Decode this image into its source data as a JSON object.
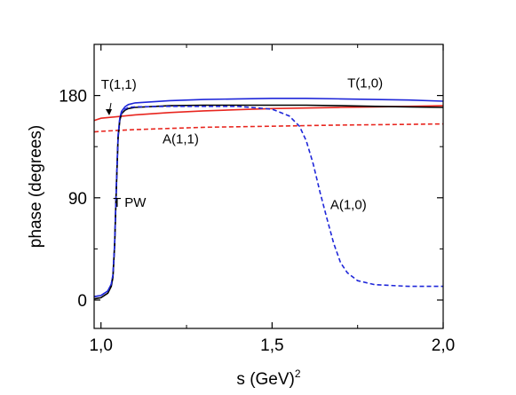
{
  "chart_data": {
    "type": "line",
    "xlabel": "s (GeV)",
    "xlabel_sup": "2",
    "ylabel": "phase (degrees)",
    "xlim": [
      0.98,
      2.0
    ],
    "ylim": [
      -25,
      225
    ],
    "xticks": [
      1.0,
      1.5,
      2.0
    ],
    "xtick_labels": [
      "1,0",
      "1,5",
      "2,0"
    ],
    "yticks": [
      0,
      90,
      180
    ],
    "ytick_labels": [
      "0",
      "90",
      "180"
    ],
    "grid": false,
    "annotations": [
      {
        "text": "T(1,1)",
        "x": 1.0,
        "y": 186
      },
      {
        "text": "T(1,0)",
        "x": 1.72,
        "y": 187
      },
      {
        "text": "A(1,1)",
        "x": 1.18,
        "y": 138
      },
      {
        "text": "T PW",
        "x": 1.035,
        "y": 82
      },
      {
        "text": "A(1,0)",
        "x": 1.67,
        "y": 80
      }
    ],
    "series": [
      {
        "name": "T(1,1)",
        "color": "#e8261f",
        "dash": "solid",
        "x": [
          0.98,
          1.0,
          1.1,
          1.2,
          1.3,
          1.4,
          1.5,
          1.6,
          1.7,
          1.8,
          1.9,
          2.0
        ],
        "y": [
          158,
          160,
          163,
          165,
          166.5,
          167.5,
          168.5,
          169,
          169.5,
          170,
          170.5,
          171
        ]
      },
      {
        "name": "A(1,1)",
        "color": "#e8261f",
        "dash": "dashed",
        "x": [
          0.98,
          1.0,
          1.1,
          1.2,
          1.3,
          1.4,
          1.5,
          1.6,
          1.7,
          1.8,
          1.9,
          2.0
        ],
        "y": [
          148,
          148.5,
          150,
          151,
          152,
          152.5,
          153,
          153.5,
          154,
          154.3,
          154.6,
          155
        ]
      },
      {
        "name": "T(1,0)",
        "color": "#1f27d9",
        "dash": "solid",
        "x": [
          0.98,
          1.0,
          1.02,
          1.03,
          1.035,
          1.04,
          1.045,
          1.05,
          1.055,
          1.06,
          1.07,
          1.08,
          1.1,
          1.2,
          1.3,
          1.4,
          1.5,
          1.6,
          1.7,
          1.8,
          1.9,
          2.0
        ],
        "y": [
          3,
          4,
          8,
          14,
          22,
          50,
          100,
          145,
          160,
          166,
          170,
          172,
          173.5,
          175.5,
          176.5,
          177,
          177.5,
          177.5,
          177,
          176.5,
          176,
          175
        ]
      },
      {
        "name": "T PW",
        "color": "#000000",
        "dash": "solid",
        "x": [
          0.98,
          1.0,
          1.02,
          1.03,
          1.035,
          1.04,
          1.045,
          1.05,
          1.055,
          1.06,
          1.07,
          1.08,
          1.1,
          1.2,
          1.3,
          1.4,
          1.5,
          1.6,
          1.7,
          1.8,
          1.9,
          2.0
        ],
        "y": [
          1,
          2,
          6,
          12,
          20,
          48,
          98,
          143,
          158,
          164,
          167,
          168.5,
          169.5,
          171,
          171.5,
          171.5,
          171.5,
          171.5,
          171,
          170.5,
          170,
          169.5
        ]
      },
      {
        "name": "A(1,0)",
        "color": "#1f27d9",
        "dash": "dashed",
        "x": [
          0.98,
          1.0,
          1.02,
          1.03,
          1.035,
          1.04,
          1.045,
          1.05,
          1.055,
          1.06,
          1.07,
          1.08,
          1.1,
          1.2,
          1.3,
          1.4,
          1.5,
          1.55,
          1.58,
          1.6,
          1.62,
          1.64,
          1.66,
          1.68,
          1.7,
          1.72,
          1.75,
          1.8,
          1.9,
          2.0
        ],
        "y": [
          3,
          4,
          8,
          14,
          22,
          50,
          100,
          145,
          160,
          165,
          168,
          169.5,
          170,
          170.5,
          170.5,
          170.5,
          168,
          162,
          153,
          140,
          120,
          95,
          72,
          50,
          33,
          24,
          17,
          13.5,
          12,
          12
        ]
      }
    ]
  }
}
